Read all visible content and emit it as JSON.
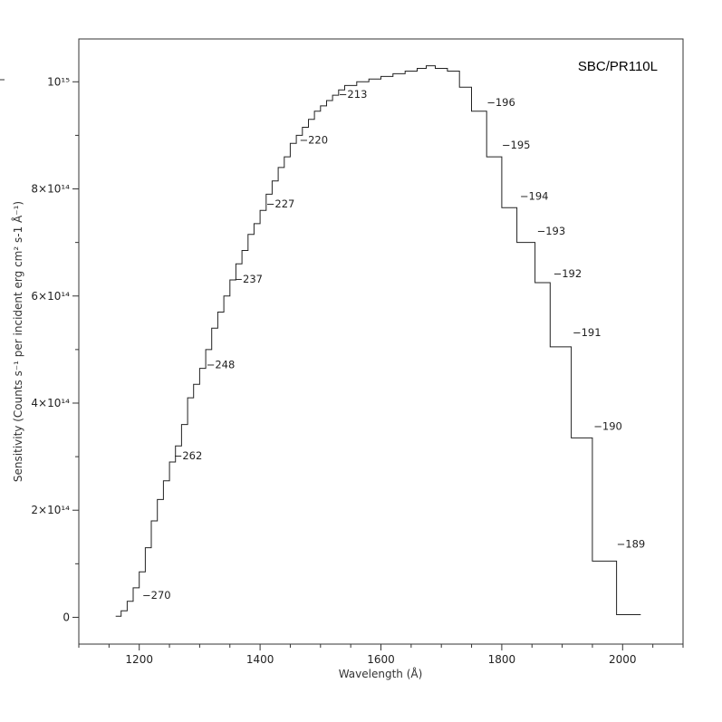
{
  "chart_data": {
    "type": "line",
    "title": "SBC/PR110L",
    "xlabel": "Wavelength (Å)",
    "ylabel": "Sensitivity (Counts s⁻¹ per incident erg cm² s-1 Å⁻¹)",
    "xlim": [
      1100,
      2100
    ],
    "ylim": [
      -50000000000000,
      1080000000000000
    ],
    "x_ticks": [
      1200,
      1400,
      1600,
      1800,
      2000
    ],
    "y_ticks": [
      {
        "value": 0,
        "label": "0"
      },
      {
        "value": 200000000000000,
        "label": "2×10¹⁴"
      },
      {
        "value": 400000000000000,
        "label": "4×10¹⁴"
      },
      {
        "value": 600000000000000,
        "label": "6×10¹⁴"
      },
      {
        "value": 800000000000000,
        "label": "8×10¹⁴"
      },
      {
        "value": 1000000000000000,
        "label": "10¹⁵"
      }
    ],
    "grid": false,
    "legend": "none",
    "series": [
      {
        "style": "step",
        "points": [
          [
            1161,
            2000000000000
          ],
          [
            1170,
            12000000000000
          ],
          [
            1180,
            30000000000000
          ],
          [
            1190,
            55000000000000
          ],
          [
            1200,
            85000000000000
          ],
          [
            1210,
            130000000000000
          ],
          [
            1220,
            180000000000000
          ],
          [
            1230,
            220000000000000
          ],
          [
            1240,
            255000000000000
          ],
          [
            1250,
            290000000000000
          ],
          [
            1260,
            320000000000000
          ],
          [
            1270,
            360000000000000
          ],
          [
            1280,
            410000000000000
          ],
          [
            1290,
            435000000000000
          ],
          [
            1300,
            465000000000000
          ],
          [
            1310,
            500000000000000
          ],
          [
            1320,
            540000000000000
          ],
          [
            1330,
            570000000000000
          ],
          [
            1340,
            600000000000000
          ],
          [
            1350,
            630000000000000
          ],
          [
            1360,
            660000000000000
          ],
          [
            1370,
            685000000000000
          ],
          [
            1380,
            715000000000000
          ],
          [
            1390,
            735000000000000
          ],
          [
            1400,
            760000000000000
          ],
          [
            1410,
            790000000000000
          ],
          [
            1420,
            815000000000000
          ],
          [
            1430,
            840000000000000
          ],
          [
            1440,
            860000000000000
          ],
          [
            1450,
            885000000000000
          ],
          [
            1460,
            900000000000000
          ],
          [
            1470,
            915000000000000
          ],
          [
            1480,
            930000000000000
          ],
          [
            1490,
            945000000000000
          ],
          [
            1500,
            955000000000000
          ],
          [
            1510,
            965000000000000
          ],
          [
            1520,
            975000000000000
          ],
          [
            1530,
            985000000000000
          ],
          [
            1540,
            993000000000000
          ],
          [
            1560,
            1000000000000000
          ],
          [
            1580,
            1005000000000000
          ],
          [
            1600,
            1010000000000000
          ],
          [
            1620,
            1015000000000000
          ],
          [
            1640,
            1020000000000000
          ],
          [
            1660,
            1025000000000000
          ],
          [
            1675,
            1030000000000000
          ],
          [
            1690,
            1025000000000000
          ],
          [
            1710,
            1020000000000000
          ],
          [
            1730,
            990000000000000
          ],
          [
            1750,
            945000000000000
          ],
          [
            1775,
            860000000000000
          ],
          [
            1800,
            765000000000000
          ],
          [
            1825,
            700000000000000
          ],
          [
            1855,
            625000000000000
          ],
          [
            1880,
            505000000000000
          ],
          [
            1915,
            335000000000000
          ],
          [
            1950,
            105000000000000
          ],
          [
            1990,
            5000000000000
          ],
          [
            2030,
            5000000000000
          ]
        ]
      }
    ],
    "annotations": [
      {
        "x": 1205,
        "y": 35000000000000,
        "text": "−270"
      },
      {
        "x": 1257,
        "y": 295000000000000,
        "text": "−262"
      },
      {
        "x": 1311,
        "y": 465000000000000,
        "text": "−248"
      },
      {
        "x": 1357,
        "y": 625000000000000,
        "text": "−237"
      },
      {
        "x": 1410,
        "y": 765000000000000,
        "text": "−227"
      },
      {
        "x": 1465,
        "y": 885000000000000,
        "text": "−220"
      },
      {
        "x": 1530,
        "y": 970000000000000,
        "text": "−213"
      },
      {
        "x": 1775,
        "y": 955000000000000,
        "text": "−196"
      },
      {
        "x": 1800,
        "y": 875000000000000,
        "text": "−195"
      },
      {
        "x": 1830,
        "y": 780000000000000,
        "text": "−194"
      },
      {
        "x": 1858,
        "y": 715000000000000,
        "text": "−193"
      },
      {
        "x": 1885,
        "y": 635000000000000,
        "text": "−192"
      },
      {
        "x": 1917,
        "y": 525000000000000,
        "text": "−191"
      },
      {
        "x": 1952,
        "y": 350000000000000,
        "text": "−190"
      },
      {
        "x": 1990,
        "y": 130000000000000,
        "text": "−189"
      }
    ]
  }
}
